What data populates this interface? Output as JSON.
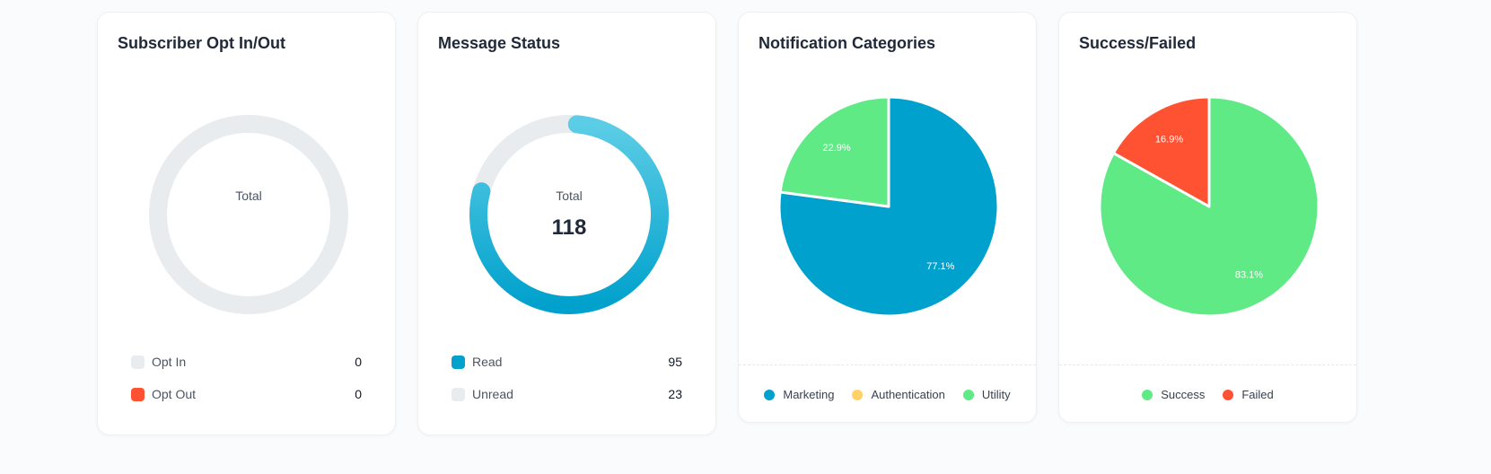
{
  "colors": {
    "blue": "#00a1cc",
    "blue_light": "#5ccde6",
    "track": "#e9ecef",
    "green": "#5fea86",
    "red": "#ff5233",
    "yellow": "#ffd166"
  },
  "cards": {
    "subscriber": {
      "title": "Subscriber Opt In/Out",
      "center_label": "Total",
      "legend": [
        {
          "label": "Opt In",
          "value": "0",
          "color": "#e9ecef"
        },
        {
          "label": "Opt Out",
          "value": "0",
          "color": "#ff5233"
        }
      ]
    },
    "message": {
      "title": "Message Status",
      "center_label": "Total",
      "center_value": "118",
      "legend": [
        {
          "label": "Read",
          "value": "95",
          "color": "#00a1cc"
        },
        {
          "label": "Unread",
          "value": "23",
          "color": "#e9ecef"
        }
      ]
    },
    "notification": {
      "title": "Notification Categories",
      "legend": [
        {
          "label": "Marketing",
          "color": "#00a1cc"
        },
        {
          "label": "Authentication",
          "color": "#ffd166"
        },
        {
          "label": "Utility",
          "color": "#5fea86"
        }
      ]
    },
    "success": {
      "title": "Success/Failed",
      "legend": [
        {
          "label": "Success",
          "color": "#5fea86"
        },
        {
          "label": "Failed",
          "color": "#ff5233"
        }
      ]
    }
  },
  "chart_data": [
    {
      "type": "donut",
      "title": "Subscriber Opt In/Out",
      "categories": [
        "Opt In",
        "Opt Out"
      ],
      "values": [
        0,
        0
      ]
    },
    {
      "type": "donut",
      "title": "Message Status",
      "categories": [
        "Read",
        "Unread"
      ],
      "values": [
        95,
        23
      ],
      "total": 118
    },
    {
      "type": "pie",
      "title": "Notification Categories",
      "categories": [
        "Marketing",
        "Authentication",
        "Utility"
      ],
      "values": [
        77.1,
        0,
        22.9
      ],
      "data_labels": [
        "77.1%",
        "",
        "22.9%"
      ]
    },
    {
      "type": "pie",
      "title": "Success/Failed",
      "categories": [
        "Success",
        "Failed"
      ],
      "values": [
        83.1,
        16.9
      ],
      "data_labels": [
        "83.1%",
        "16.9%"
      ]
    }
  ]
}
